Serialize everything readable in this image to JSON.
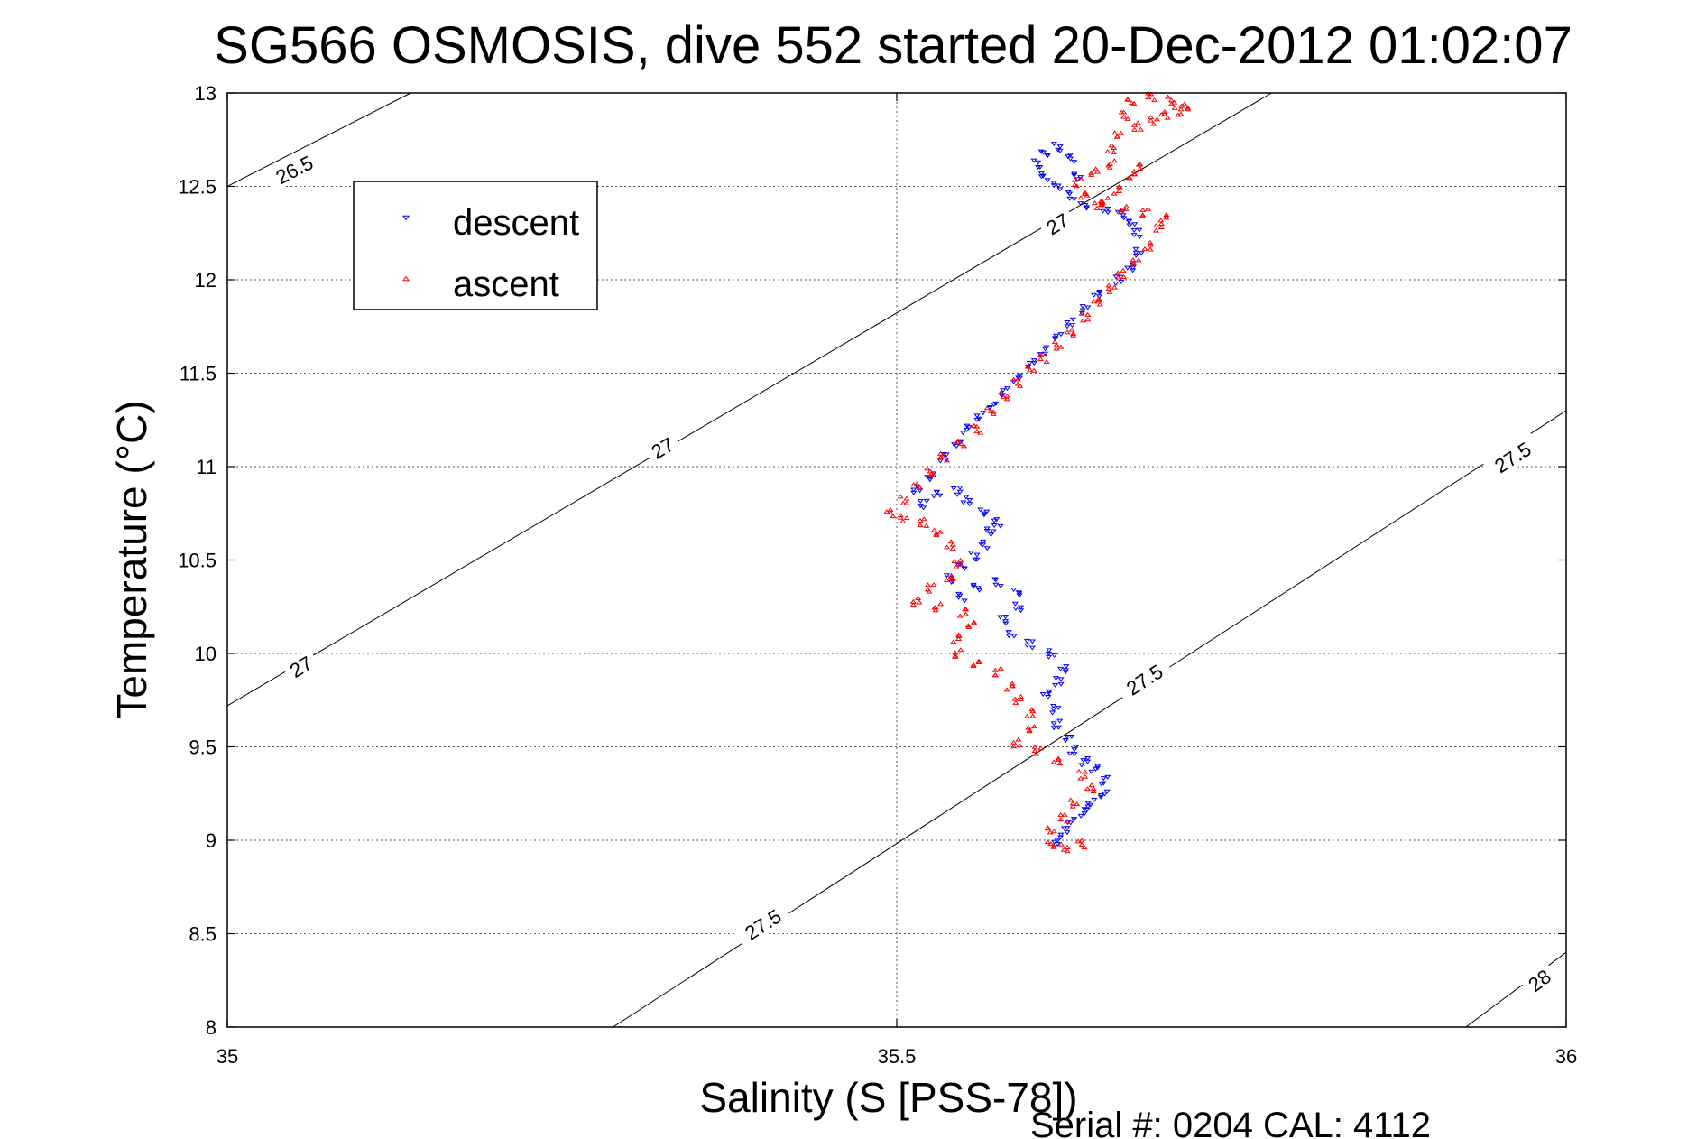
{
  "chart_data": {
    "type": "scatter",
    "title": "SG566 OSMOSIS, dive 552 started 20-Dec-2012 01:02:07",
    "xlabel": "Salinity (S [PSS-78])",
    "ylabel": "Temperature (°C)",
    "xlim": [
      35,
      36
    ],
    "ylim": [
      8,
      13
    ],
    "xticks": [
      "35",
      "35.5",
      "36"
    ],
    "yticks": [
      "8",
      "8.5",
      "9",
      "9.5",
      "10",
      "10.5",
      "11",
      "11.5",
      "12",
      "12.5",
      "13"
    ],
    "grid": true,
    "legend_position": "top-left",
    "footer": "Serial #: 0204  CAL: 4112",
    "series": [
      {
        "name": "descent",
        "color": "#0000ff",
        "marker": "triangle-down",
        "points": [
          [
            35.62,
            9.0
          ],
          [
            35.625,
            9.05
          ],
          [
            35.63,
            9.1
          ],
          [
            35.64,
            9.15
          ],
          [
            35.645,
            9.2
          ],
          [
            35.655,
            9.25
          ],
          [
            35.655,
            9.32
          ],
          [
            35.648,
            9.38
          ],
          [
            35.64,
            9.42
          ],
          [
            35.632,
            9.48
          ],
          [
            35.628,
            9.55
          ],
          [
            35.62,
            9.62
          ],
          [
            35.618,
            9.7
          ],
          [
            35.612,
            9.78
          ],
          [
            35.62,
            9.85
          ],
          [
            35.625,
            9.92
          ],
          [
            35.615,
            10.0
          ],
          [
            35.6,
            10.05
          ],
          [
            35.585,
            10.1
          ],
          [
            35.58,
            10.18
          ],
          [
            35.59,
            10.25
          ],
          [
            35.59,
            10.33
          ],
          [
            35.575,
            10.38
          ],
          [
            35.56,
            10.35
          ],
          [
            35.548,
            10.3
          ],
          [
            35.54,
            10.4
          ],
          [
            35.548,
            10.47
          ],
          [
            35.558,
            10.52
          ],
          [
            35.565,
            10.58
          ],
          [
            35.57,
            10.65
          ],
          [
            35.575,
            10.7
          ],
          [
            35.565,
            10.76
          ],
          [
            35.552,
            10.82
          ],
          [
            35.545,
            10.87
          ],
          [
            35.53,
            10.85
          ],
          [
            35.52,
            10.8
          ],
          [
            35.515,
            10.88
          ],
          [
            35.525,
            10.95
          ],
          [
            35.535,
            11.05
          ],
          [
            35.545,
            11.12
          ],
          [
            35.552,
            11.2
          ],
          [
            35.562,
            11.27
          ],
          [
            35.572,
            11.33
          ],
          [
            35.58,
            11.4
          ],
          [
            35.59,
            11.47
          ],
          [
            35.6,
            11.55
          ],
          [
            35.61,
            11.62
          ],
          [
            35.62,
            11.7
          ],
          [
            35.63,
            11.77
          ],
          [
            35.64,
            11.84
          ],
          [
            35.65,
            11.92
          ],
          [
            35.665,
            12.0
          ],
          [
            35.675,
            12.07
          ],
          [
            35.68,
            12.15
          ],
          [
            35.68,
            12.25
          ],
          [
            35.675,
            12.3
          ],
          [
            35.668,
            12.35
          ],
          [
            35.655,
            12.38
          ],
          [
            35.64,
            12.4
          ],
          [
            35.63,
            12.45
          ],
          [
            35.62,
            12.5
          ],
          [
            35.61,
            12.55
          ],
          [
            35.605,
            12.62
          ],
          [
            35.61,
            12.68
          ],
          [
            35.62,
            12.71
          ],
          [
            35.63,
            12.65
          ],
          [
            35.635,
            12.55
          ]
        ]
      },
      {
        "name": "ascent",
        "color": "#ff0000",
        "marker": "triangle-up",
        "points": [
          [
            35.615,
            8.98
          ],
          [
            35.625,
            8.96
          ],
          [
            35.638,
            8.98
          ],
          [
            35.615,
            9.05
          ],
          [
            35.625,
            9.12
          ],
          [
            35.632,
            9.2
          ],
          [
            35.645,
            9.28
          ],
          [
            35.638,
            9.35
          ],
          [
            35.62,
            9.42
          ],
          [
            35.605,
            9.48
          ],
          [
            35.59,
            9.52
          ],
          [
            35.6,
            9.6
          ],
          [
            35.6,
            9.68
          ],
          [
            35.59,
            9.75
          ],
          [
            35.585,
            9.82
          ],
          [
            35.575,
            9.9
          ],
          [
            35.56,
            9.95
          ],
          [
            35.545,
            10.0
          ],
          [
            35.545,
            10.08
          ],
          [
            35.555,
            10.15
          ],
          [
            35.55,
            10.22
          ],
          [
            35.53,
            10.25
          ],
          [
            35.515,
            10.28
          ],
          [
            35.525,
            10.35
          ],
          [
            35.54,
            10.4
          ],
          [
            35.545,
            10.48
          ],
          [
            35.54,
            10.58
          ],
          [
            35.53,
            10.65
          ],
          [
            35.52,
            10.7
          ],
          [
            35.505,
            10.72
          ],
          [
            35.495,
            10.75
          ],
          [
            35.505,
            10.82
          ],
          [
            35.515,
            10.9
          ],
          [
            35.525,
            10.97
          ],
          [
            35.535,
            11.05
          ],
          [
            35.548,
            11.12
          ],
          [
            35.56,
            11.2
          ],
          [
            35.57,
            11.3
          ],
          [
            35.58,
            11.38
          ],
          [
            35.59,
            11.45
          ],
          [
            35.6,
            11.52
          ],
          [
            35.61,
            11.58
          ],
          [
            35.62,
            11.65
          ],
          [
            35.63,
            11.72
          ],
          [
            35.64,
            11.8
          ],
          [
            35.65,
            11.88
          ],
          [
            35.66,
            11.95
          ],
          [
            35.668,
            12.03
          ],
          [
            35.678,
            12.1
          ],
          [
            35.688,
            12.18
          ],
          [
            35.695,
            12.28
          ],
          [
            35.7,
            12.33
          ],
          [
            35.685,
            12.36
          ],
          [
            35.67,
            12.38
          ],
          [
            35.655,
            12.42
          ],
          [
            35.665,
            12.48
          ],
          [
            35.675,
            12.55
          ],
          [
            35.68,
            12.6
          ],
          [
            35.66,
            12.62
          ],
          [
            35.648,
            12.58
          ],
          [
            35.635,
            12.52
          ],
          [
            35.64,
            12.45
          ],
          [
            35.65,
            12.4
          ],
          [
            35.66,
            12.7
          ],
          [
            35.665,
            12.78
          ],
          [
            35.68,
            12.82
          ],
          [
            35.692,
            12.85
          ],
          [
            35.7,
            12.88
          ],
          [
            35.71,
            12.9
          ],
          [
            35.715,
            12.93
          ],
          [
            35.705,
            12.96
          ],
          [
            35.69,
            12.98
          ],
          [
            35.675,
            12.95
          ],
          [
            35.67,
            12.88
          ]
        ]
      }
    ],
    "contours": [
      {
        "label": "26.5",
        "points": [
          [
            35.0,
            12.5
          ],
          [
            35.137,
            13.0
          ]
        ]
      },
      {
        "label": "27",
        "points": [
          [
            35.0,
            9.72
          ],
          [
            35.78,
            13.0
          ]
        ]
      },
      {
        "label": "27.5",
        "points": [
          [
            35.288,
            8.0
          ],
          [
            36.0,
            11.3
          ]
        ]
      },
      {
        "label": "28",
        "points": [
          [
            35.925,
            8.0
          ],
          [
            36.0,
            8.4
          ]
        ]
      }
    ],
    "contour_labels": [
      {
        "text": "26.5",
        "at": [
          35.05,
          12.59
        ]
      },
      {
        "text": "27",
        "at": [
          35.62,
          12.3
        ]
      },
      {
        "text": "27",
        "at": [
          35.325,
          11.1
        ]
      },
      {
        "text": "27",
        "at": [
          35.055,
          9.93
        ]
      },
      {
        "text": "27.5",
        "at": [
          35.96,
          11.05
        ]
      },
      {
        "text": "27.5",
        "at": [
          35.685,
          9.86
        ]
      },
      {
        "text": "27.5",
        "at": [
          35.4,
          8.55
        ]
      },
      {
        "text": "28",
        "at": [
          35.98,
          8.25
        ]
      }
    ]
  }
}
